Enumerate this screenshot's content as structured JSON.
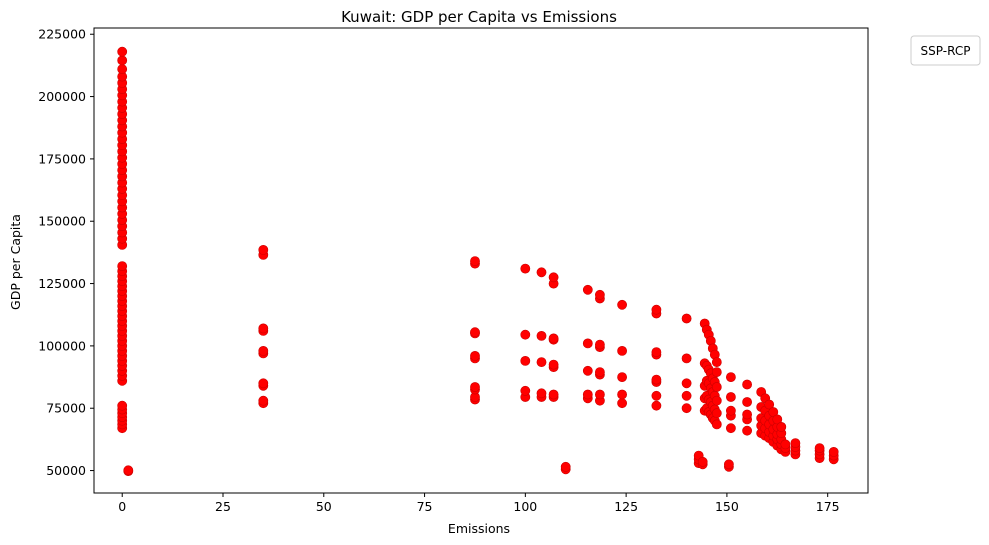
{
  "chart_data": {
    "type": "scatter",
    "title": "Kuwait: GDP per Capita vs Emissions",
    "xlabel": "Emissions",
    "ylabel": "GDP per Capita",
    "xlim": [
      -7,
      185
    ],
    "ylim": [
      41000,
      227500
    ],
    "xticks": [
      0,
      25,
      50,
      75,
      100,
      125,
      150,
      175
    ],
    "yticks": [
      50000,
      75000,
      100000,
      125000,
      150000,
      175000,
      200000,
      225000
    ],
    "grid": false,
    "legend": {
      "title": "SSP-RCP",
      "placement": "outside-top-right"
    },
    "series": [
      {
        "color": "#ff0000",
        "marker": "circle",
        "x_column_zero": 0,
        "y_column_zero": [
          67000,
          68500,
          70000,
          71500,
          73000,
          74500,
          76000,
          86000,
          88000,
          90000,
          92000,
          94000,
          96000,
          98000,
          100000,
          102000,
          104000,
          106000,
          108000,
          110000,
          112000,
          114000,
          116000,
          118000,
          120000,
          122000,
          124000,
          126000,
          128000,
          130000,
          132000,
          140500,
          143000,
          145500,
          148000,
          150500,
          153000,
          155500,
          158000,
          160500,
          163000,
          165500,
          168000,
          170500,
          173000,
          175500,
          178000,
          180500,
          183000,
          185500,
          188000,
          190500,
          193000,
          195500,
          198000,
          200500,
          203000,
          205500,
          208000,
          211000,
          214500,
          218000
        ],
        "points": [
          [
            1.5,
            49800
          ],
          [
            1.5,
            50100
          ],
          [
            35,
            77000
          ],
          [
            35,
            78000
          ],
          [
            35,
            84000
          ],
          [
            35,
            85000
          ],
          [
            35,
            97000
          ],
          [
            35,
            98000
          ],
          [
            35,
            106000
          ],
          [
            35,
            107000
          ],
          [
            35,
            136500
          ],
          [
            35,
            138500
          ],
          [
            87.5,
            78500
          ],
          [
            87.5,
            79500
          ],
          [
            87.5,
            82500
          ],
          [
            87.5,
            83500
          ],
          [
            87.5,
            95000
          ],
          [
            87.5,
            96000
          ],
          [
            87.5,
            105000
          ],
          [
            87.5,
            105500
          ],
          [
            87.5,
            133000
          ],
          [
            87.5,
            134000
          ],
          [
            100,
            79500
          ],
          [
            100,
            82000
          ],
          [
            100,
            94000
          ],
          [
            100,
            104500
          ],
          [
            100,
            131000
          ],
          [
            104,
            79500
          ],
          [
            104,
            81000
          ],
          [
            104,
            93500
          ],
          [
            104,
            104000
          ],
          [
            104,
            129500
          ],
          [
            107,
            79500
          ],
          [
            107,
            80500
          ],
          [
            107,
            91500
          ],
          [
            107,
            92500
          ],
          [
            107,
            102500
          ],
          [
            107,
            103000
          ],
          [
            107,
            125000
          ],
          [
            107,
            127500
          ],
          [
            110,
            50500
          ],
          [
            110,
            51500
          ],
          [
            115.5,
            79000
          ],
          [
            115.5,
            80500
          ],
          [
            115.5,
            90000
          ],
          [
            115.5,
            101000
          ],
          [
            115.5,
            122500
          ],
          [
            118.5,
            78000
          ],
          [
            118.5,
            80500
          ],
          [
            118.5,
            88500
          ],
          [
            118.5,
            89500
          ],
          [
            118.5,
            99500
          ],
          [
            118.5,
            100500
          ],
          [
            118.5,
            119000
          ],
          [
            118.5,
            120500
          ],
          [
            124,
            77000
          ],
          [
            124,
            80500
          ],
          [
            124,
            87500
          ],
          [
            124,
            98000
          ],
          [
            124,
            116500
          ],
          [
            132.5,
            76000
          ],
          [
            132.5,
            80000
          ],
          [
            132.5,
            85500
          ],
          [
            132.5,
            86500
          ],
          [
            132.5,
            96500
          ],
          [
            132.5,
            97500
          ],
          [
            132.5,
            113000
          ],
          [
            132.5,
            114500
          ],
          [
            140,
            75000
          ],
          [
            140,
            80000
          ],
          [
            140,
            85000
          ],
          [
            140,
            95000
          ],
          [
            140,
            111000
          ],
          [
            143,
            53000
          ],
          [
            143,
            54500
          ],
          [
            143,
            56000
          ],
          [
            144,
            52500
          ],
          [
            144,
            53500
          ],
          [
            144.5,
            74000
          ],
          [
            144.5,
            79000
          ],
          [
            144.5,
            84000
          ],
          [
            144.5,
            93000
          ],
          [
            144.5,
            109000
          ],
          [
            145,
            75000
          ],
          [
            145,
            80000
          ],
          [
            145,
            86000
          ],
          [
            145,
            92000
          ],
          [
            145,
            106500
          ],
          [
            145.5,
            73500
          ],
          [
            145.5,
            78500
          ],
          [
            145.5,
            85000
          ],
          [
            145.5,
            90500
          ],
          [
            145.5,
            104500
          ],
          [
            146,
            72500
          ],
          [
            146,
            77500
          ],
          [
            146,
            83000
          ],
          [
            146,
            89000
          ],
          [
            146,
            102000
          ],
          [
            146.5,
            71000
          ],
          [
            146.5,
            76000
          ],
          [
            146.5,
            81500
          ],
          [
            146.5,
            87000
          ],
          [
            146.5,
            99000
          ],
          [
            147,
            70000
          ],
          [
            147,
            74500
          ],
          [
            147,
            80000
          ],
          [
            147,
            85500
          ],
          [
            147,
            96500
          ],
          [
            147.5,
            68500
          ],
          [
            147.5,
            73000
          ],
          [
            147.5,
            78000
          ],
          [
            147.5,
            83500
          ],
          [
            147.5,
            93500
          ],
          [
            147.5,
            89500
          ],
          [
            150.5,
            51500
          ],
          [
            150.5,
            52500
          ],
          [
            151,
            67000
          ],
          [
            151,
            72000
          ],
          [
            151,
            74000
          ],
          [
            151,
            79500
          ],
          [
            151,
            87500
          ],
          [
            155,
            66000
          ],
          [
            155,
            70500
          ],
          [
            155,
            72500
          ],
          [
            155,
            77500
          ],
          [
            155,
            84500
          ],
          [
            158.5,
            65000
          ],
          [
            158.5,
            68000
          ],
          [
            158.5,
            71000
          ],
          [
            158.5,
            75500
          ],
          [
            158.5,
            81500
          ],
          [
            159.5,
            64000
          ],
          [
            159.5,
            67000
          ],
          [
            159.5,
            70000
          ],
          [
            159.5,
            74000
          ],
          [
            159.5,
            79000
          ],
          [
            160.5,
            63000
          ],
          [
            160.5,
            65500
          ],
          [
            160.5,
            68500
          ],
          [
            160.5,
            72000
          ],
          [
            160.5,
            76500
          ],
          [
            161.5,
            61500
          ],
          [
            161.5,
            64000
          ],
          [
            161.5,
            66500
          ],
          [
            161.5,
            70000
          ],
          [
            161.5,
            73500
          ],
          [
            162.5,
            60000
          ],
          [
            162.5,
            62500
          ],
          [
            162.5,
            64500
          ],
          [
            162.5,
            67500
          ],
          [
            162.5,
            70500
          ],
          [
            163.5,
            58500
          ],
          [
            163.5,
            60500
          ],
          [
            163.5,
            62500
          ],
          [
            163.5,
            65000
          ],
          [
            163.5,
            67500
          ],
          [
            164.5,
            57500
          ],
          [
            164.5,
            59000
          ],
          [
            164.5,
            60500
          ],
          [
            167,
            56500
          ],
          [
            167,
            58000
          ],
          [
            167,
            59500
          ],
          [
            167,
            61000
          ],
          [
            173,
            55000
          ],
          [
            173,
            56500
          ],
          [
            173,
            58000
          ],
          [
            173,
            59000
          ],
          [
            176.5,
            54500
          ],
          [
            176.5,
            56000
          ],
          [
            176.5,
            57500
          ]
        ]
      }
    ]
  }
}
